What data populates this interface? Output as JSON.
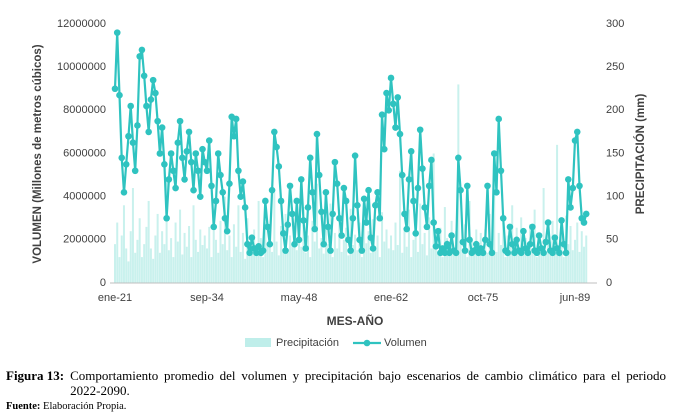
{
  "chart_data": {
    "type": "combo",
    "xlabel": "MES-AÑO",
    "ylabel": "VOLUMEN (Millones de metros cúbicos)",
    "y2label": "PRECIPITACIÓN (mm)",
    "ylim": [
      0,
      12000000
    ],
    "yticks": [
      0,
      2000000,
      4000000,
      6000000,
      8000000,
      10000000,
      12000000
    ],
    "y2lim": [
      0,
      300
    ],
    "y2ticks": [
      0,
      50,
      100,
      150,
      200,
      250,
      300
    ],
    "legend": "bottom",
    "categories": [
      "ene-21",
      null,
      null,
      null,
      null,
      null,
      null,
      null,
      null,
      null,
      null,
      null,
      null,
      null,
      null,
      null,
      null,
      null,
      null,
      null,
      null,
      null,
      null,
      null,
      null,
      null,
      null,
      null,
      null,
      null,
      null,
      null,
      null,
      null,
      null,
      null,
      null,
      null,
      null,
      null,
      null,
      "sep-34",
      null,
      null,
      null,
      null,
      null,
      null,
      null,
      null,
      null,
      null,
      null,
      null,
      null,
      null,
      null,
      null,
      null,
      null,
      null,
      null,
      null,
      null,
      null,
      null,
      null,
      null,
      null,
      null,
      null,
      null,
      null,
      null,
      null,
      null,
      null,
      null,
      null,
      null,
      null,
      null,
      "may-48",
      null,
      null,
      null,
      null,
      null,
      null,
      null,
      null,
      null,
      null,
      null,
      null,
      null,
      null,
      null,
      null,
      null,
      null,
      null,
      null,
      null,
      null,
      null,
      null,
      null,
      null,
      null,
      null,
      null,
      null,
      null,
      null,
      null,
      null,
      null,
      null,
      null,
      null,
      null,
      null,
      "ene-62",
      null,
      null,
      null,
      null,
      null,
      null,
      null,
      null,
      null,
      null,
      null,
      null,
      null,
      null,
      null,
      null,
      null,
      null,
      null,
      null,
      null,
      null,
      null,
      null,
      null,
      null,
      null,
      null,
      null,
      null,
      null,
      null,
      null,
      null,
      null,
      null,
      null,
      null,
      null,
      null,
      "oct-75",
      null,
      null,
      null,
      null,
      null,
      null,
      null,
      null,
      null,
      null,
      null,
      null,
      null,
      null,
      null,
      null,
      null,
      null,
      null,
      null,
      null,
      null,
      null,
      null,
      null,
      null,
      null,
      null,
      null,
      null,
      null,
      null,
      null,
      null,
      null,
      null,
      null,
      null,
      null,
      null,
      "jun-89",
      null,
      null,
      null,
      null,
      null
    ],
    "series": [
      {
        "name": "Precipitación",
        "type": "bar",
        "axis": "y2",
        "color": "#bfeeea",
        "values": [
          45,
          70,
          30,
          55,
          90,
          40,
          25,
          60,
          110,
          35,
          50,
          75,
          30,
          45,
          65,
          95,
          40,
          28,
          55,
          80,
          35,
          60,
          45,
          120,
          38,
          52,
          30,
          70,
          48,
          85,
          33,
          58,
          42,
          66,
          30,
          90,
          50,
          36,
          62,
          44,
          55,
          40,
          65,
          30,
          85,
          50,
          35,
          72,
          45,
          100,
          38,
          55,
          30,
          68,
          42,
          90,
          36,
          58,
          28,
          75,
          46,
          33,
          62,
          40,
          95,
          52,
          30,
          70,
          44,
          58,
          36,
          105,
          48,
          32,
          66,
          40,
          80,
          35,
          55,
          45,
          70,
          38,
          60,
          42,
          88,
          35,
          55,
          30,
          72,
          48,
          115,
          40,
          52,
          34,
          66,
          45,
          92,
          30,
          58,
          40,
          78,
          36,
          50,
          64,
          32,
          86,
          44,
          56,
          38,
          70,
          30,
          98,
          46,
          60,
          35,
          74,
          42,
          55,
          30,
          82,
          48,
          62,
          40,
          55,
          38,
          70,
          44,
          130,
          35,
          60,
          42,
          85,
          30,
          50,
          66,
          36,
          92,
          45,
          58,
          32,
          76,
          40,
          150,
          48,
          35,
          64,
          30,
          88,
          52,
          40,
          72,
          34,
          60,
          230,
          45,
          38,
          68,
          30,
          95,
          50,
          42,
          62,
          36,
          58,
          40,
          62,
          35,
          80,
          48,
          120,
          36,
          58,
          44,
          70,
          30,
          55,
          42,
          90,
          38,
          64,
          32,
          76,
          46,
          52,
          34,
          68,
          40,
          85,
          30,
          58,
          44,
          110,
          36,
          62,
          48,
          72,
          35,
          160,
          40,
          56,
          30,
          78,
          45,
          66,
          38,
          50,
          70,
          36,
          60,
          42,
          55
        ]
      },
      {
        "name": "Volumen",
        "type": "line",
        "color": "#2fc3c0",
        "values": [
          9000000,
          11600000,
          8700000,
          5800000,
          4200000,
          5500000,
          6800000,
          8200000,
          6500000,
          5200000,
          7300000,
          10500000,
          10800000,
          9600000,
          8200000,
          7000000,
          8500000,
          9400000,
          8800000,
          7500000,
          6000000,
          7200000,
          5500000,
          3000000,
          4800000,
          6000000,
          5200000,
          4400000,
          6500000,
          7500000,
          5800000,
          4800000,
          6100000,
          7000000,
          5600000,
          4300000,
          6000000,
          5200000,
          4000000,
          6200000,
          5600000,
          5200000,
          6600000,
          4500000,
          2600000,
          3800000,
          6000000,
          5000000,
          4200000,
          3000000,
          2400000,
          4600000,
          7700000,
          6800000,
          7600000,
          5200000,
          4000000,
          4700000,
          3500000,
          1800000,
          1400000,
          2100000,
          1600000,
          1400000,
          1700000,
          1400000,
          1500000,
          3800000,
          2600000,
          1800000,
          4300000,
          7000000,
          6300000,
          5400000,
          3800000,
          2300000,
          1500000,
          2700000,
          4500000,
          3200000,
          1800000,
          3800000,
          2000000,
          4800000,
          2900000,
          1600000,
          3500000,
          5800000,
          4200000,
          2500000,
          6900000,
          5000000,
          3300000,
          1800000,
          4200000,
          2600000,
          1500000,
          3200000,
          5600000,
          4600000,
          3000000,
          2200000,
          4400000,
          3800000,
          2000000,
          1500000,
          3000000,
          5900000,
          3600000,
          2000000,
          1500000,
          3900000,
          2800000,
          4300000,
          2100000,
          1600000,
          3600000,
          4200000,
          3000000,
          7800000,
          6200000,
          8800000,
          8000000,
          9500000,
          8300000,
          7200000,
          8600000,
          6900000,
          5000000,
          3200000,
          2500000,
          4800000,
          6100000,
          3800000,
          2300000,
          4400000,
          7100000,
          5300000,
          3500000,
          2600000,
          4500000,
          5700000,
          2800000,
          1700000,
          2400000,
          1400000,
          1600000,
          1400000,
          1800000,
          1400000,
          2200000,
          1500000,
          1400000,
          5800000,
          4300000,
          1900000,
          1500000,
          4500000,
          2000000,
          1400000,
          1500000,
          1800000,
          1400000,
          1600000,
          1400000,
          2000000,
          4500000,
          1800000,
          1400000,
          6000000,
          4200000,
          7600000,
          5200000,
          3000000,
          1500000,
          1400000,
          2600000,
          1800000,
          1400000,
          2000000,
          1500000,
          1400000,
          2400000,
          1600000,
          1400000,
          1800000,
          2600000,
          1500000,
          1400000,
          2200000,
          1600000,
          1400000,
          1900000,
          2800000,
          1500000,
          1400000,
          2100000,
          1600000,
          1400000,
          2900000,
          1800000,
          1400000,
          4800000,
          3500000,
          4400000,
          6600000,
          7000000,
          4500000,
          3000000,
          2800000,
          3200000
        ]
      }
    ]
  },
  "caption": {
    "label": "Figura 13:",
    "text": "Comportamiento promedio del volumen y precipitación bajo escenarios de cambio climático para el periodo 2022-2090."
  },
  "source": {
    "label": "Fuente:",
    "text": "Elaboración Propia."
  }
}
